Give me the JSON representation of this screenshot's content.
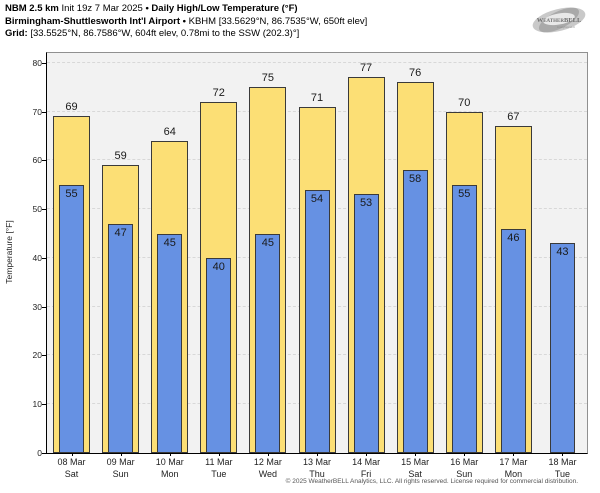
{
  "title_lines": [
    {
      "bold": "NBM 2.5 km",
      "normal": "Init 19z 7 Mar 2025",
      "bold2": "• Daily High/Low Temperature (°F)"
    },
    {
      "bold": "Birmingham-Shuttlesworth Int'l Airport •",
      "normal": "KBHM [33.5629°N, 86.7535°W, 650ft elev]",
      "bold2": ""
    },
    {
      "bold": "Grid:",
      "normal": "[33.5525°N, 86.7586°W, 604ft elev, 0.78mi to the SSW (202.3)°]",
      "bold2": ""
    }
  ],
  "logo": {
    "name": "WeatherBELL",
    "tagline": "Analytics LLC"
  },
  "chart_data": {
    "type": "bar",
    "title": "NBM 2.5 km Daily High/Low Temperature (°F) — KBHM Birmingham-Shuttlesworth Int'l Airport",
    "ylabel": "Temperature [°F]",
    "xlabel": "",
    "ylim": [
      0,
      82
    ],
    "yticks": [
      0,
      10,
      20,
      30,
      40,
      50,
      60,
      70,
      80
    ],
    "grid": "horizontal dashed",
    "legend_position": "none",
    "categories": [
      {
        "date": "08 Mar",
        "day": "Sat"
      },
      {
        "date": "09 Mar",
        "day": "Sun"
      },
      {
        "date": "10 Mar",
        "day": "Mon"
      },
      {
        "date": "11 Mar",
        "day": "Tue"
      },
      {
        "date": "12 Mar",
        "day": "Wed"
      },
      {
        "date": "13 Mar",
        "day": "Thu"
      },
      {
        "date": "14 Mar",
        "day": "Fri"
      },
      {
        "date": "15 Mar",
        "day": "Sat"
      },
      {
        "date": "16 Mar",
        "day": "Sun"
      },
      {
        "date": "17 Mar",
        "day": "Mon"
      },
      {
        "date": "18 Mar",
        "day": "Tue"
      }
    ],
    "series": [
      {
        "name": "Daily High",
        "color": "#fcdf75",
        "values": [
          69,
          59,
          64,
          72,
          75,
          71,
          77,
          76,
          70,
          67,
          null
        ]
      },
      {
        "name": "Daily Low",
        "color": "#6691e3",
        "values": [
          55,
          47,
          45,
          40,
          45,
          54,
          53,
          58,
          55,
          46,
          43
        ]
      }
    ]
  },
  "colors": {
    "high_bar": "#fcdf75",
    "low_bar": "#6691e3",
    "bar_border": "#3a3a3a",
    "plot_background": "#f2f2f2",
    "gridline": "#d8d8d8",
    "frame": "#909090",
    "axis": "#000000"
  },
  "footer": {
    "copyright": "© 2025 WeatherBELL Analytics, LLC. All rights reserved. License required for commercial distribution."
  }
}
